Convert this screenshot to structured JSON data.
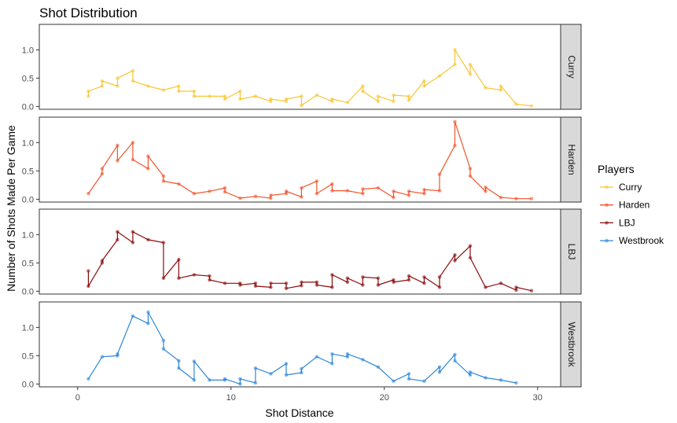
{
  "chart_data": {
    "type": "line",
    "title": "Shot Distribution",
    "xlabel": "Shot Distance",
    "ylabel": "Number of Shots Made Per Game",
    "xlim": [
      -2.5,
      31.5
    ],
    "ylim": [
      -0.05,
      1.45
    ],
    "x_ticks": [
      0,
      10,
      20,
      30
    ],
    "y_ticks": [
      0.0,
      0.5,
      1.0
    ],
    "x_tick_labels": [
      "0",
      "10",
      "20",
      "30"
    ],
    "y_tick_labels": [
      "0.0",
      "0.5",
      "1.0"
    ],
    "legend_title": "Players",
    "legend_position": "right",
    "grid": false,
    "facets": "rows",
    "series": [
      {
        "name": "Curry",
        "color": "#F9C534",
        "points": [
          [
            0.7,
            0.18
          ],
          [
            0.7,
            0.27
          ],
          [
            1.6,
            0.36
          ],
          [
            1.6,
            0.45
          ],
          [
            2.6,
            0.36
          ],
          [
            2.6,
            0.5
          ],
          [
            3.6,
            0.63
          ],
          [
            3.6,
            0.45
          ],
          [
            4.6,
            0.36
          ],
          [
            5.6,
            0.29
          ],
          [
            6.6,
            0.36
          ],
          [
            6.6,
            0.27
          ],
          [
            7.6,
            0.27
          ],
          [
            7.6,
            0.18
          ],
          [
            8.6,
            0.18
          ],
          [
            9.6,
            0.18
          ],
          [
            9.6,
            0.13
          ],
          [
            10.6,
            0.27
          ],
          [
            10.6,
            0.13
          ],
          [
            11.6,
            0.18
          ],
          [
            12.6,
            0.09
          ],
          [
            12.6,
            0.13
          ],
          [
            13.6,
            0.09
          ],
          [
            13.6,
            0.13
          ],
          [
            14.6,
            0.18
          ],
          [
            14.6,
            0.02
          ],
          [
            15.6,
            0.2
          ],
          [
            16.6,
            0.09
          ],
          [
            16.6,
            0.13
          ],
          [
            17.6,
            0.07
          ],
          [
            18.6,
            0.36
          ],
          [
            18.6,
            0.27
          ],
          [
            19.6,
            0.09
          ],
          [
            19.6,
            0.18
          ],
          [
            20.6,
            0.09
          ],
          [
            20.6,
            0.2
          ],
          [
            21.6,
            0.18
          ],
          [
            21.6,
            0.11
          ],
          [
            22.6,
            0.45
          ],
          [
            22.6,
            0.36
          ],
          [
            23.6,
            0.54
          ],
          [
            24.6,
            0.74
          ],
          [
            24.6,
            1.0
          ],
          [
            25.6,
            0.57
          ],
          [
            25.6,
            0.74
          ],
          [
            26.6,
            0.33
          ],
          [
            27.6,
            0.29
          ],
          [
            27.6,
            0.36
          ],
          [
            28.6,
            0.04
          ],
          [
            29.6,
            0.01
          ]
        ]
      },
      {
        "name": "Harden",
        "color": "#F0542A",
        "points": [
          [
            0.7,
            0.1
          ],
          [
            1.6,
            0.45
          ],
          [
            1.6,
            0.54
          ],
          [
            2.6,
            0.95
          ],
          [
            2.6,
            0.68
          ],
          [
            3.6,
            1.0
          ],
          [
            3.6,
            0.7
          ],
          [
            4.6,
            0.54
          ],
          [
            4.6,
            0.76
          ],
          [
            5.6,
            0.41
          ],
          [
            5.6,
            0.32
          ],
          [
            6.6,
            0.27
          ],
          [
            7.6,
            0.1
          ],
          [
            8.6,
            0.14
          ],
          [
            9.6,
            0.2
          ],
          [
            9.6,
            0.13
          ],
          [
            10.6,
            0.02
          ],
          [
            11.6,
            0.05
          ],
          [
            12.6,
            0.02
          ],
          [
            12.6,
            0.07
          ],
          [
            13.6,
            0.1
          ],
          [
            13.6,
            0.14
          ],
          [
            14.6,
            0.04
          ],
          [
            14.6,
            0.2
          ],
          [
            15.6,
            0.32
          ],
          [
            15.6,
            0.1
          ],
          [
            16.6,
            0.27
          ],
          [
            16.6,
            0.15
          ],
          [
            17.6,
            0.15
          ],
          [
            18.6,
            0.1
          ],
          [
            18.6,
            0.18
          ],
          [
            19.6,
            0.2
          ],
          [
            20.6,
            0.03
          ],
          [
            20.6,
            0.14
          ],
          [
            21.6,
            0.07
          ],
          [
            21.6,
            0.14
          ],
          [
            22.6,
            0.1
          ],
          [
            22.6,
            0.17
          ],
          [
            23.6,
            0.15
          ],
          [
            23.6,
            0.44
          ],
          [
            24.6,
            0.95
          ],
          [
            24.6,
            1.37
          ],
          [
            25.6,
            0.54
          ],
          [
            25.6,
            0.41
          ],
          [
            26.6,
            0.14
          ],
          [
            26.6,
            0.21
          ],
          [
            27.6,
            0.03
          ],
          [
            28.6,
            0.01
          ],
          [
            29.6,
            0.01
          ]
        ]
      },
      {
        "name": "LBJ",
        "color": "#8B0B0B",
        "points": [
          [
            0.7,
            0.36
          ],
          [
            0.7,
            0.09
          ],
          [
            1.6,
            0.5
          ],
          [
            1.6,
            0.54
          ],
          [
            2.6,
            0.91
          ],
          [
            2.6,
            1.05
          ],
          [
            3.6,
            0.86
          ],
          [
            3.6,
            1.05
          ],
          [
            4.6,
            0.91
          ],
          [
            5.6,
            0.86
          ],
          [
            5.6,
            0.23
          ],
          [
            6.6,
            0.56
          ],
          [
            6.6,
            0.23
          ],
          [
            7.6,
            0.29
          ],
          [
            8.6,
            0.27
          ],
          [
            8.6,
            0.2
          ],
          [
            9.6,
            0.14
          ],
          [
            10.6,
            0.14
          ],
          [
            10.6,
            0.11
          ],
          [
            11.6,
            0.14
          ],
          [
            11.6,
            0.09
          ],
          [
            12.6,
            0.07
          ],
          [
            12.6,
            0.14
          ],
          [
            13.6,
            0.14
          ],
          [
            13.6,
            0.05
          ],
          [
            14.6,
            0.1
          ],
          [
            14.6,
            0.16
          ],
          [
            15.6,
            0.16
          ],
          [
            15.6,
            0.11
          ],
          [
            16.6,
            0.07
          ],
          [
            16.6,
            0.29
          ],
          [
            17.6,
            0.16
          ],
          [
            17.6,
            0.23
          ],
          [
            18.6,
            0.11
          ],
          [
            18.6,
            0.25
          ],
          [
            19.6,
            0.23
          ],
          [
            19.6,
            0.11
          ],
          [
            20.6,
            0.2
          ],
          [
            20.6,
            0.16
          ],
          [
            21.6,
            0.2
          ],
          [
            21.6,
            0.27
          ],
          [
            22.6,
            0.14
          ],
          [
            22.6,
            0.25
          ],
          [
            23.6,
            0.07
          ],
          [
            23.6,
            0.25
          ],
          [
            24.6,
            0.64
          ],
          [
            24.6,
            0.54
          ],
          [
            25.6,
            0.8
          ],
          [
            25.6,
            0.59
          ],
          [
            26.6,
            0.07
          ],
          [
            27.6,
            0.14
          ],
          [
            28.6,
            0.02
          ],
          [
            28.6,
            0.07
          ],
          [
            29.6,
            0.01
          ]
        ]
      },
      {
        "name": "Westbrook",
        "color": "#2E86D8",
        "points": [
          [
            0.7,
            0.09
          ],
          [
            1.6,
            0.48
          ],
          [
            2.6,
            0.5
          ],
          [
            2.6,
            0.53
          ],
          [
            3.6,
            1.2
          ],
          [
            4.6,
            1.07
          ],
          [
            4.6,
            1.27
          ],
          [
            5.6,
            0.77
          ],
          [
            5.6,
            0.62
          ],
          [
            6.6,
            0.41
          ],
          [
            6.6,
            0.28
          ],
          [
            7.6,
            0.07
          ],
          [
            7.6,
            0.4
          ],
          [
            8.6,
            0.07
          ],
          [
            9.6,
            0.07
          ],
          [
            9.6,
            0.09
          ],
          [
            10.6,
            0.0
          ],
          [
            10.6,
            0.09
          ],
          [
            11.6,
            0.02
          ],
          [
            11.6,
            0.28
          ],
          [
            12.6,
            0.18
          ],
          [
            13.6,
            0.36
          ],
          [
            13.6,
            0.16
          ],
          [
            14.6,
            0.2
          ],
          [
            14.6,
            0.27
          ],
          [
            15.6,
            0.48
          ],
          [
            16.6,
            0.36
          ],
          [
            16.6,
            0.53
          ],
          [
            17.6,
            0.48
          ],
          [
            17.6,
            0.53
          ],
          [
            18.6,
            0.43
          ],
          [
            19.6,
            0.3
          ],
          [
            20.6,
            0.05
          ],
          [
            21.6,
            0.18
          ],
          [
            21.6,
            0.09
          ],
          [
            22.6,
            0.05
          ],
          [
            23.6,
            0.3
          ],
          [
            23.6,
            0.21
          ],
          [
            24.6,
            0.52
          ],
          [
            24.6,
            0.41
          ],
          [
            25.6,
            0.16
          ],
          [
            25.6,
            0.21
          ],
          [
            26.6,
            0.11
          ],
          [
            27.6,
            0.07
          ],
          [
            28.6,
            0.02
          ]
        ]
      }
    ]
  }
}
